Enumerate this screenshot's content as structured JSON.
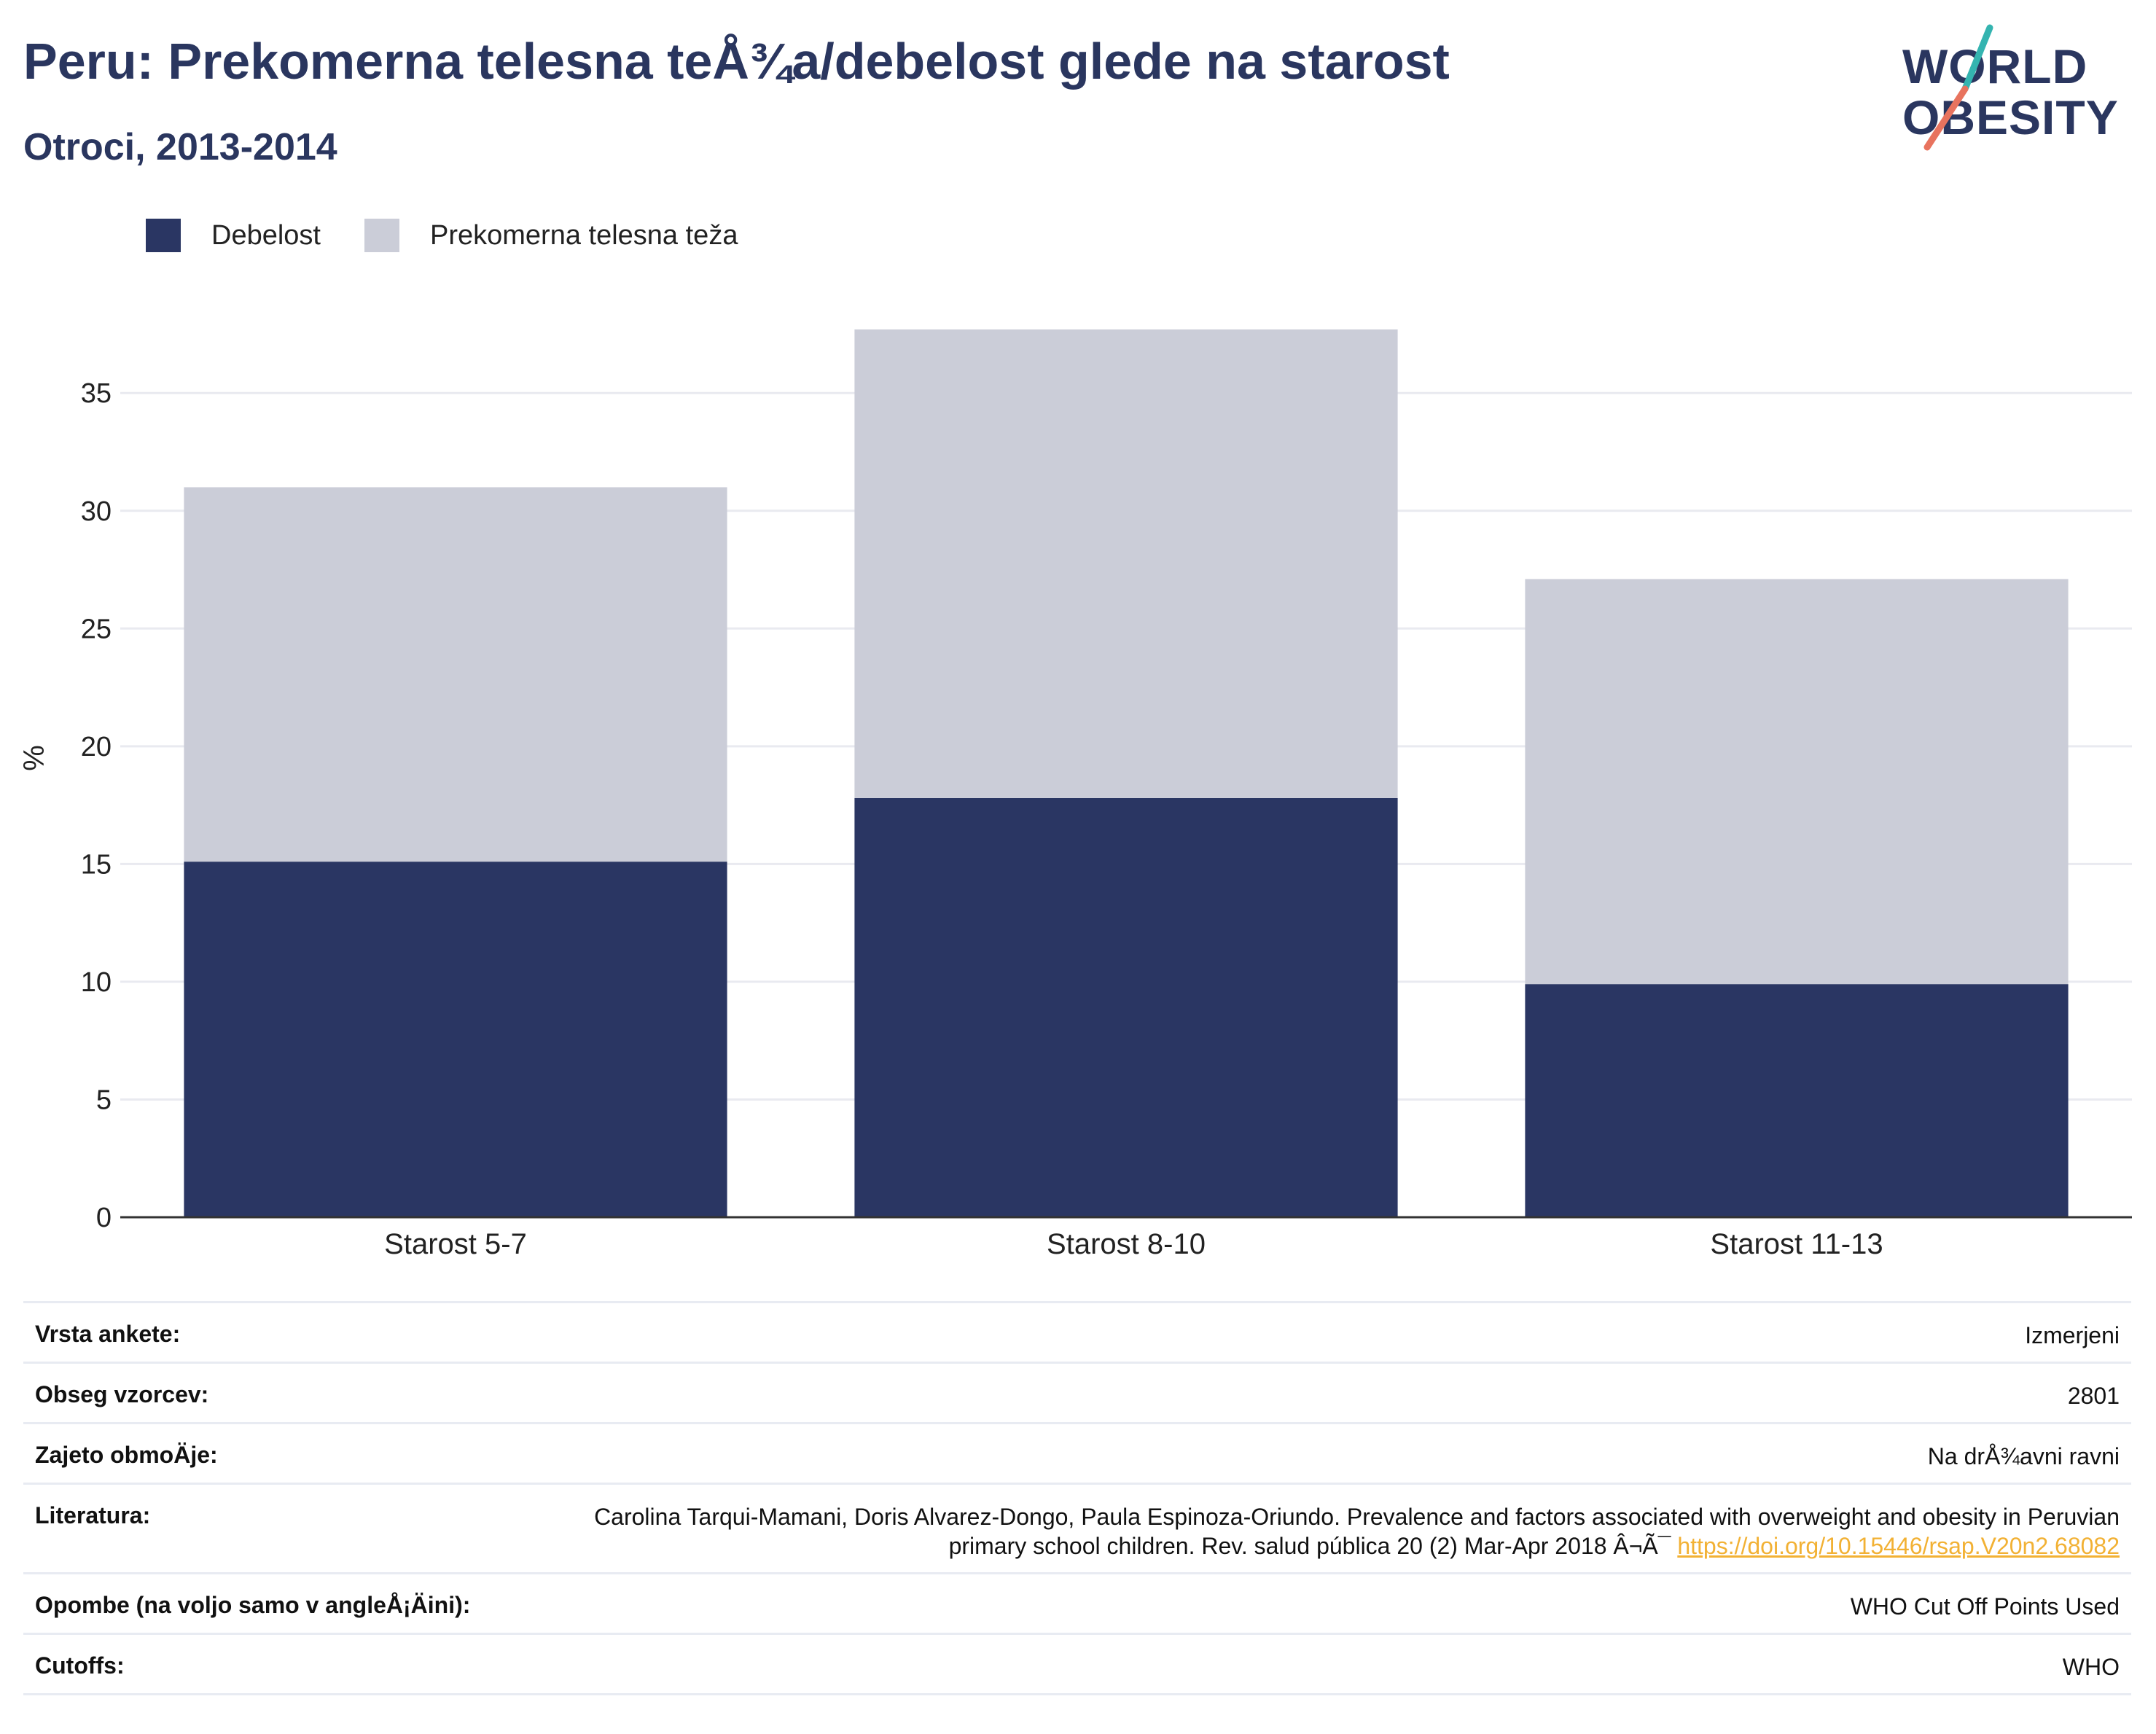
{
  "header": {
    "title": "Peru: Prekomerna telesna teÅ¾a/debelost glede na starost",
    "subtitle": "Otroci, 2013-2014"
  },
  "logo": {
    "line1": "WORLD",
    "line2": "OBESITY"
  },
  "colors": {
    "obesity": "#2a3663",
    "overweight": "#cbcdd8",
    "title": "#2a365f",
    "link": "#f2b134",
    "logo_teal": "#34b4b0",
    "logo_coral": "#e8735e"
  },
  "legend": [
    {
      "label": "Debelost",
      "color": "#2a3663"
    },
    {
      "label": "Prekomerna telesna teža",
      "color": "#cbcdd8"
    }
  ],
  "chart_data": {
    "type": "bar",
    "stacked": true,
    "categories": [
      "Starost 5-7",
      "Starost 8-10",
      "Starost 11-13"
    ],
    "series": [
      {
        "name": "Debelost",
        "values": [
          15.1,
          17.8,
          9.9
        ]
      },
      {
        "name": "Prekomerna telesna teža",
        "values": [
          15.9,
          19.9,
          17.2
        ]
      }
    ],
    "ylabel": "%",
    "ylim": [
      0,
      39
    ],
    "yticks": [
      0,
      5,
      10,
      15,
      20,
      25,
      30,
      35
    ],
    "grid": true,
    "legend_position": "top-left"
  },
  "info": [
    {
      "key": "Vrsta ankete:",
      "value": "Izmerjeni"
    },
    {
      "key": "Obseg vzorcev:",
      "value": "2801"
    },
    {
      "key": "Zajeto obmoÄje:",
      "value": "Na drÅ¾avni ravni"
    },
    {
      "key": "Literatura:",
      "value": "Carolina Tarqui-Mamani, Doris Alvarez-Dongo, Paula Espinoza-Oriundo. Prevalence and factors associated with overweight and obesity in Peruvian primary school children. Rev. salud pública 20 (2) Mar-Apr 2018 Â¬Ã¯",
      "link": "https://doi.org/10.15446/rsap.V20n2.68082"
    },
    {
      "key": "Opombe (na voljo samo v angleÅ¡Äini):",
      "value": "WHO Cut Off Points Used"
    },
    {
      "key": "Cutoffs:",
      "value": "WHO"
    }
  ]
}
